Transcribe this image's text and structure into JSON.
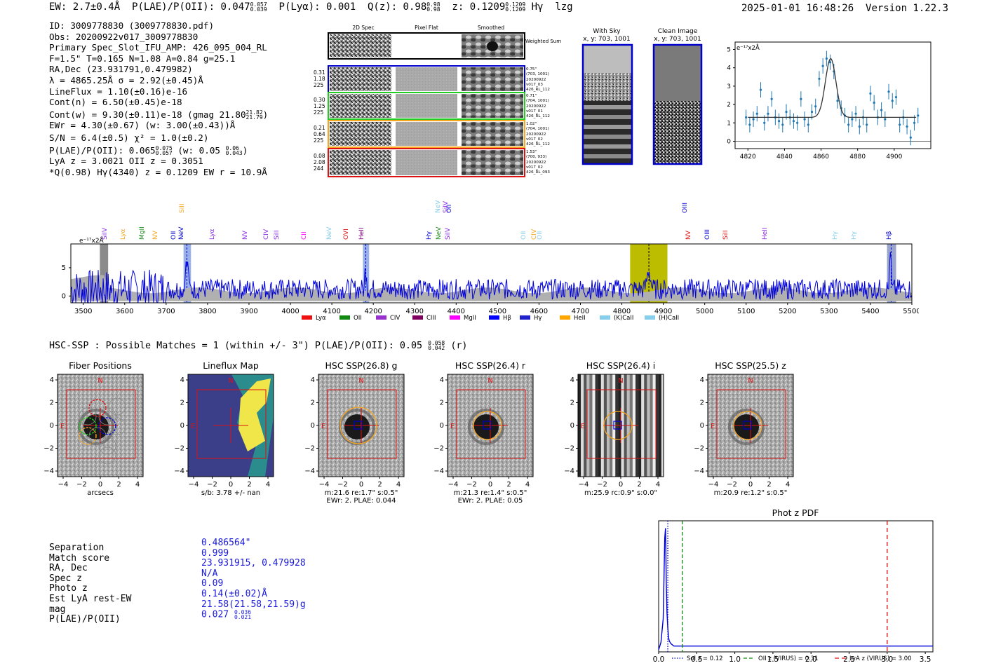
{
  "header": {
    "ew": "EW: 2.7±0.4Å",
    "plae_label": "P(LAE)/P(OII): 0.047",
    "plae_sup": "0.057",
    "plae_sub": "0.039",
    "plya": "P(Lyα): 0.001",
    "q_label": "Q(z): 0.98",
    "q_sup": "0.98",
    "q_sub": "0.98",
    "z_label": "z: 0.1209",
    "z_sup": "0.1209",
    "z_sub": "0.1209",
    "line_name": "Hγ",
    "tag": "lzg",
    "timestamp": "2025-01-01 16:48:26",
    "version": "Version 1.22.3"
  },
  "info": {
    "id": "ID: 3009778830 (3009778830.pdf)",
    "obs": "Obs: 20200922v017_3009778830",
    "primary": "Primary Spec_Slot_IFU_AMP: 426_095_004_RL",
    "params": "F=1.5\"  T=0.165  N=1.08  A=0.84  g=25.1",
    "radec": "RA,Dec (23.931791,0.479982)",
    "lambda": "λ = 4865.25Å  σ = 2.92(±0.45)Å",
    "lineflux": "LineFlux = 1.10(±0.16)e-16",
    "contn": "Cont(n) = 6.50(±0.45)e-18",
    "contw": "Cont(w) = 9.30(±0.11)e-18 (gmag 21.80",
    "contw_sup": "21.82",
    "contw_sub": "21.79",
    "ewr": "EWr = 4.30(±0.67) (w: 3.00(±0.43))Å",
    "sn": "S/N = 6.4(±0.5)  χ² = 1.0(±0.2)",
    "plae": "P(LAE)/P(OII): 0.065",
    "plae_sup": "0.075",
    "plae_sub": "0.057",
    "plae_w": "(w: 0.05",
    "plae_w_sup": "0.06",
    "plae_w_sub": "0.043",
    "lya": "LyA z = 3.0021  OII z = 0.3051",
    "q": "*Q(0.98) Hγ(4340) z = 0.1209  EW r = 10.9Å"
  },
  "cutouts": {
    "col_labels": [
      "2D Spec",
      "Pixel Flat",
      "Smoothed"
    ],
    "weighted": "Weighted Sum",
    "rows": [
      {
        "left": [
          "0.31",
          "1.18",
          "225"
        ],
        "right": [
          "0.75\"",
          "(703, 1001)",
          "20200922",
          "v017_03",
          "426_RL_112"
        ],
        "color": "#0000cc"
      },
      {
        "left": [
          "0.30",
          "1.25",
          "225"
        ],
        "right": [
          "0.71\"",
          "(704, 1001)",
          "20200922",
          "v017_01",
          "426_RL_112"
        ],
        "color": "#22cc22"
      },
      {
        "left": [
          "0.21",
          "0.64",
          "225"
        ],
        "right": [
          "1.02\"",
          "(704, 1001)",
          "20200922",
          "v017_02",
          "426_RL_112"
        ],
        "color": "#f5a623"
      },
      {
        "left": [
          "0.08",
          "2.08",
          "244"
        ],
        "right": [
          "1.53\"",
          "(700, 933)",
          "20200922",
          "v017_02",
          "426_RL_093"
        ],
        "color": "#dd1111"
      }
    ]
  },
  "sky": {
    "with_sky_title": "With Sky",
    "with_sky_xy": "x, y: 703, 1001",
    "clean_title": "Clean Image",
    "clean_xy": "x, y: 703, 1001"
  },
  "zoom_plot": {
    "unit": "e⁻¹⁷x2Å",
    "yticks": [
      "0",
      "1",
      "2",
      "3",
      "4",
      "5"
    ],
    "xticks": [
      "4820",
      "4840",
      "4860",
      "4880",
      "4900"
    ]
  },
  "spectrum": {
    "unit": "e⁻¹⁷x2Å",
    "yticks": [
      "0",
      "5"
    ],
    "xticks": [
      "3500",
      "3600",
      "3700",
      "3800",
      "3900",
      "4000",
      "4100",
      "4200",
      "4300",
      "4400",
      "4500",
      "4600",
      "4700",
      "4800",
      "4900",
      "5000",
      "5100",
      "5200",
      "5300",
      "5400",
      "5500"
    ],
    "line_labels": [
      {
        "t": "SiIV",
        "c": "#8a2be2",
        "row": 0
      },
      {
        "t": "Lyα",
        "c": "#f5a623",
        "row": 0
      },
      {
        "t": "MgII",
        "c": "#228b22",
        "row": 0
      },
      {
        "t": "NV",
        "c": "#f5a623",
        "row": 0
      },
      {
        "t": "OII",
        "c": "#0000cc",
        "row": 0
      },
      {
        "t": "NeV",
        "c": "#0000cc",
        "row": 0
      },
      {
        "t": "SiII",
        "c": "#f5a623",
        "row": 1
      },
      {
        "t": "Lyα",
        "c": "#8a2be2",
        "row": 0
      },
      {
        "t": "NV",
        "c": "#8a2be2",
        "row": 0
      },
      {
        "t": "CIV",
        "c": "#8a2be2",
        "row": 0
      },
      {
        "t": "SiII",
        "c": "#8a2be2",
        "row": 0
      },
      {
        "t": "CII",
        "c": "#ff00ff",
        "row": 0
      },
      {
        "t": "NeV",
        "c": "#87ceeb",
        "row": 0
      },
      {
        "t": "OVI",
        "c": "#dd1111",
        "row": 0
      },
      {
        "t": "HeII",
        "c": "#800080",
        "row": 0
      },
      {
        "t": "SiIV",
        "c": "#8a2be2",
        "row": 1
      },
      {
        "t": "NeV",
        "c": "#87ceeb",
        "row": 1
      },
      {
        "t": "OII",
        "c": "#0000cc",
        "row": 1
      },
      {
        "t": "Hγ",
        "c": "#0000cc",
        "row": 0
      },
      {
        "t": "NeV",
        "c": "#228b22",
        "row": 0
      },
      {
        "t": "SiIV",
        "c": "#8a2be2",
        "row": 0
      },
      {
        "t": "OII",
        "c": "#87ceeb",
        "row": 0
      },
      {
        "t": "CIV",
        "c": "#f5a623",
        "row": 0
      },
      {
        "t": "OII",
        "c": "#87ceeb",
        "row": 0
      },
      {
        "t": "NV",
        "c": "#dd1111",
        "row": 0
      },
      {
        "t": "OIII",
        "c": "#0000cc",
        "row": 1
      },
      {
        "t": "OIII",
        "c": "#0000cc",
        "row": 0
      },
      {
        "t": "SiII",
        "c": "#dd1111",
        "row": 0
      },
      {
        "t": "HeII",
        "c": "#8a2be2",
        "row": 0
      },
      {
        "t": "Hγ",
        "c": "#87ceeb",
        "row": 0
      },
      {
        "t": "Hγ",
        "c": "#87ceeb",
        "row": 0
      },
      {
        "t": "Hβ",
        "c": "#0000cc",
        "row": 0
      }
    ],
    "legend": [
      {
        "label": "Lyα",
        "color": "#ee1111"
      },
      {
        "label": "OII",
        "color": "#118811"
      },
      {
        "label": "CIV",
        "color": "#9932cc"
      },
      {
        "label": "CIII",
        "color": "#800060"
      },
      {
        "label": "MgII",
        "color": "#ff00ff"
      },
      {
        "label": "Hβ",
        "color": "#0000ff"
      },
      {
        "label": "Hγ",
        "color": "#2222cc"
      },
      {
        "label": "HeII",
        "color": "#ffa500"
      },
      {
        "label": "(K)CaII",
        "color": "#87ceeb"
      },
      {
        "label": "(H)CaII",
        "color": "#87ceeb"
      }
    ]
  },
  "hsc": {
    "summary": "HSC-SSP : Possible Matches = 1 (within +/- 3\")  P(LAE)/P(OII): 0.05",
    "summary_sup": "0.058",
    "summary_sub": "0.042",
    "summary_tail": "(r)",
    "panels": [
      {
        "title": "Fiber Positions",
        "cap1": "arcsecs",
        "cap2": ""
      },
      {
        "title": "Lineflux Map",
        "cap1": "s/b: 3.78 +/- nan",
        "cap2": ""
      },
      {
        "title": "HSC SSP(26.8) g",
        "cap1": "m:21.6  re:1.7\"  s:0.5\"",
        "cap2": "EWr: 2, PLAE: 0.044"
      },
      {
        "title": "HSC SSP(26.4) r",
        "cap1": "m:21.3  re:1.4\"  s:0.5\"",
        "cap2": "EWr: 2, PLAE: 0.05"
      },
      {
        "title": "HSC SSP(26.4) i",
        "cap1": "m:25.9  rc:0.9\"  s:0.0\"",
        "cap2": ""
      },
      {
        "title": "HSC SSP(25.5) z",
        "cap1": "m:20.9  re:1.2\"  s:0.5\"",
        "cap2": ""
      }
    ],
    "ticks": [
      "−4",
      "−2",
      "0",
      "2",
      "4"
    ],
    "yticks": [
      "4",
      "2",
      "0",
      "−2",
      "−4"
    ],
    "north": "N",
    "east": "E"
  },
  "match_table": {
    "labels": [
      "Separation",
      "Match score",
      "RA, Dec",
      "Spec z",
      "Photo z",
      "Est LyA rest-EW",
      "mag",
      "P(LAE)/P(OII)"
    ],
    "values": [
      "0.486564\"",
      "0.999",
      "23.931915, 0.479928",
      "N/A",
      "0.09",
      "0.14(±0.02)Å",
      "21.58(21.58,21.59)g",
      "0.027"
    ],
    "plae_sup": "0.036",
    "plae_sub": "0.021"
  },
  "photz": {
    "title": "Phot z PDF",
    "xticks": [
      "0.0",
      "0.5",
      "1.0",
      "1.5",
      "2.0",
      "2.5",
      "3.0",
      "3.5"
    ],
    "legend": [
      {
        "label": "Sol z = 0.12",
        "color": "#0000cc"
      },
      {
        "label": "OII z (VIRUS) = 0.31",
        "color": "#118811"
      },
      {
        "label": "LyA z (VIRUS) = 3.00",
        "color": "#dd1111"
      }
    ]
  },
  "chart_data": [
    {
      "type": "scatter",
      "title": "",
      "xlabel": "",
      "ylabel": "e-17x2Å",
      "xlim": [
        4813,
        4920
      ],
      "ylim": [
        -0.4,
        5.4
      ],
      "x": [
        4819,
        4821,
        4823,
        4825,
        4827,
        4829,
        4831,
        4833,
        4835,
        4837,
        4839,
        4841,
        4843,
        4845,
        4847,
        4849,
        4851,
        4853,
        4855,
        4857,
        4859,
        4861,
        4863,
        4865,
        4867,
        4869,
        4871,
        4873,
        4875,
        4877,
        4879,
        4881,
        4883,
        4885,
        4887,
        4889,
        4891,
        4893,
        4895,
        4897,
        4899,
        4901,
        4903,
        4905,
        4907,
        4909,
        4911,
        4913
      ],
      "values": [
        1.3,
        0.9,
        1.2,
        1.5,
        2.8,
        1.0,
        1.5,
        2.3,
        1.3,
        1.1,
        0.9,
        1.6,
        1.3,
        1.1,
        1.0,
        2.3,
        1.2,
        0.9,
        1.6,
        1.9,
        3.4,
        4.1,
        4.5,
        4.3,
        3.8,
        2.2,
        1.8,
        1.4,
        0.9,
        1.2,
        1.5,
        0.8,
        1.3,
        0.9,
        2.6,
        2.1,
        1.3,
        1.7,
        1.2,
        2.7,
        2.2,
        2.4,
        0.9,
        1.3,
        0.8,
        0.2,
        1.0,
        1.4
      ],
      "fit_peak": 4.2,
      "fit_center": 4865.25,
      "fit_sigma": 2.92,
      "fit_cont": 1.3
    },
    {
      "type": "line",
      "title": "",
      "ylabel": "e-17x2Å",
      "xlim": [
        3470,
        5500
      ],
      "ylim": [
        -1.2,
        9.2
      ],
      "highlight_regions": [
        [
          3540,
          3560
        ],
        [
          3740,
          3760
        ],
        [
          4175,
          4190
        ],
        [
          4820,
          4910
        ],
        [
          5440,
          5460
        ]
      ],
      "emission_center": 4865.25
    },
    {
      "type": "line",
      "title": "Phot z PDF",
      "xlim": [
        0.0,
        3.6
      ],
      "x": [
        0.0,
        0.03,
        0.06,
        0.08,
        0.09,
        0.1,
        0.11,
        0.12,
        0.13,
        0.14,
        0.16,
        0.2,
        0.3,
        0.5,
        1.0,
        1.5,
        2.0,
        2.5,
        3.0,
        3.5,
        3.6
      ],
      "values": [
        0.0,
        0.06,
        0.25,
        0.9,
        0.98,
        0.55,
        0.3,
        0.18,
        0.1,
        0.07,
        0.05,
        0.03,
        0.03,
        0.03,
        0.03,
        0.03,
        0.03,
        0.03,
        0.03,
        0.03,
        0.03
      ],
      "vlines": [
        0.12,
        0.31,
        3.0
      ]
    }
  ]
}
